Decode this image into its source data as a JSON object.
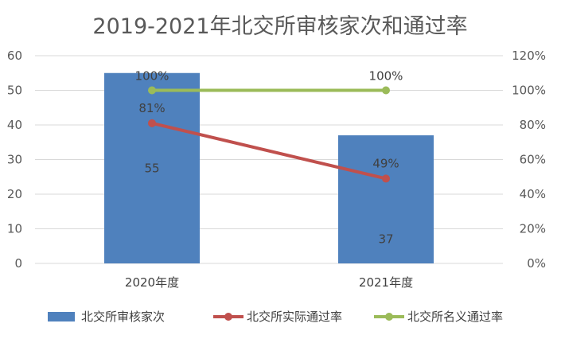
{
  "chart_data": {
    "type": "bar+line",
    "title": "2019-2021年北交所审核家次和通过率",
    "categories": [
      "2020年度",
      "2021年度"
    ],
    "series": [
      {
        "name": "北交所审核家次",
        "type": "bar",
        "axis": "left",
        "color": "#4F81BD",
        "values": [
          55,
          37
        ],
        "data_labels": [
          "55",
          "37"
        ]
      },
      {
        "name": "北交所实际通过率",
        "type": "line",
        "axis": "right",
        "color": "#C0504D",
        "values": [
          81,
          49
        ],
        "data_labels": [
          "81%",
          "49%"
        ]
      },
      {
        "name": "北交所名义通过率",
        "type": "line",
        "axis": "right",
        "color": "#9BBB59",
        "values": [
          100,
          100
        ],
        "data_labels": [
          "100%",
          "100%"
        ]
      }
    ],
    "y_left": {
      "min": 0,
      "max": 60,
      "step": 10,
      "tick_labels": [
        "0",
        "10",
        "20",
        "30",
        "40",
        "50",
        "60"
      ]
    },
    "y_right": {
      "min": 0,
      "max": 120,
      "step": 20,
      "unit": "%",
      "tick_labels": [
        "0%",
        "20%",
        "40%",
        "60%",
        "80%",
        "100%",
        "120%"
      ]
    },
    "grid": true,
    "legend_position": "bottom"
  }
}
